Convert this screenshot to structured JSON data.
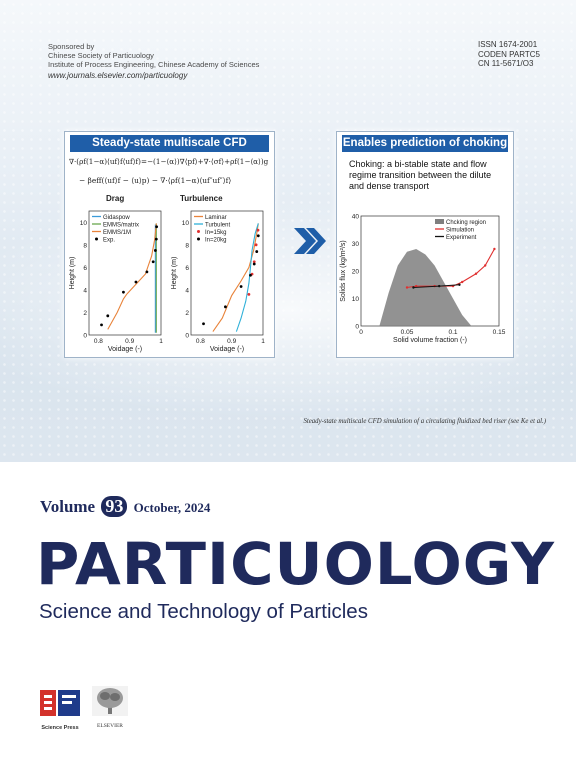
{
  "header": {
    "sponsor_lines": [
      "Sponsored by",
      "Chinese Society of Particuology",
      "Institute of Process Engineering, Chinese Academy of Sciences"
    ],
    "url": "www.journals.elsevier.com/particuology",
    "codes": [
      "ISSN 1674-2001",
      "CODEN PARTC5",
      "CN 11-5671/O3"
    ]
  },
  "left_panel": {
    "title": "Steady-state multiscale CFD modeling",
    "equation_line1": "∇·(ρf(1−α)⟨uf⟩f⟨uf⟩f)=−(1−⟨α⟩)∇⟨pf⟩+∇·⟨σf⟩+ρf(1−⟨α⟩)g",
    "equation_line2": "− βeff(⟨uf⟩f − ⟨u⟩p)  −  ∇·⟨ρf(1−α)⟨uf″uf″⟩f⟩",
    "drag_label": "Drag",
    "turbulence_label": "Turbulence"
  },
  "right_panel": {
    "title": "Enables prediction of choking",
    "text": "Choking: a bi-stable state and flow regime transition between the dilute and dense transport"
  },
  "chart_data": [
    {
      "type": "line",
      "xlabel": "Voidage (-)",
      "ylabel": "Height (m)",
      "xlim": [
        0.77,
        1.0
      ],
      "ylim": [
        0,
        11
      ],
      "xticks": [
        "0.8",
        "0.9",
        "1"
      ],
      "yticks": [
        "0",
        "2",
        "4",
        "6",
        "8",
        "10"
      ],
      "legend": "top-left",
      "series": [
        {
          "name": "Gidaspow",
          "color": "#3a9bd9",
          "x": [
            0.982,
            0.982,
            0.982,
            0.982,
            0.982,
            0.982,
            0.982,
            0.982,
            0.982,
            0.982
          ],
          "y": [
            0.2,
            1,
            2,
            3,
            4,
            5,
            6,
            7,
            8,
            9.8
          ]
        },
        {
          "name": "EMMS/matrix",
          "color": "#6aa84f",
          "x": [
            0.985,
            0.985,
            0.985,
            0.985,
            0.985,
            0.985,
            0.985,
            0.985
          ],
          "y": [
            0.2,
            1.5,
            3,
            4.5,
            6,
            7.5,
            9,
            9.9
          ]
        },
        {
          "name": "EMMS/1M",
          "color": "#e8833a",
          "x": [
            0.83,
            0.86,
            0.88,
            0.89,
            0.91,
            0.95,
            0.97,
            0.98,
            0.985
          ],
          "y": [
            0.5,
            2,
            3.2,
            3.6,
            4.2,
            5.4,
            7,
            8.5,
            9.9
          ]
        },
        {
          "name": "Exp.",
          "color": "#000000",
          "marker": "point",
          "x": [
            0.81,
            0.83,
            0.88,
            0.92,
            0.955,
            0.975,
            0.982,
            0.985,
            0.986
          ],
          "y": [
            0.9,
            1.7,
            3.8,
            4.7,
            5.6,
            6.5,
            7.5,
            8.5,
            9.6
          ]
        }
      ]
    },
    {
      "type": "line",
      "xlabel": "Voidage (-)",
      "ylabel": "Height (m)",
      "xlim": [
        0.77,
        1.0
      ],
      "ylim": [
        0,
        11
      ],
      "xticks": [
        "0.8",
        "0.9",
        "1"
      ],
      "yticks": [
        "0",
        "2",
        "4",
        "6",
        "8",
        "10"
      ],
      "legend": "top-left",
      "series": [
        {
          "name": "Laminar",
          "color": "#e8833a",
          "x": [
            0.84,
            0.87,
            0.9,
            0.93,
            0.955,
            0.97,
            0.98,
            0.985
          ],
          "y": [
            0.3,
            1.5,
            3.5,
            4.8,
            6,
            7.5,
            9,
            9.9
          ]
        },
        {
          "name": "Turbulent",
          "color": "#2fb0d8",
          "x": [
            0.915,
            0.93,
            0.945,
            0.955,
            0.96,
            0.965,
            0.975,
            0.985
          ],
          "y": [
            0.3,
            1.5,
            3,
            4.6,
            6,
            7.5,
            9,
            9.9
          ]
        },
        {
          "name": "In=15kg",
          "color": "#e03030",
          "marker": "point",
          "x": [
            0.955,
            0.965,
            0.972,
            0.978,
            0.984
          ],
          "y": [
            3.6,
            5.4,
            6.5,
            8,
            9.3
          ]
        },
        {
          "name": "In=20kg",
          "color": "#000000",
          "marker": "point",
          "x": [
            0.81,
            0.88,
            0.93,
            0.96,
            0.972,
            0.98,
            0.985
          ],
          "y": [
            1.0,
            2.5,
            4.3,
            5.3,
            6.3,
            7.4,
            8.8
          ]
        }
      ]
    },
    {
      "type": "line",
      "xlabel": "Solid volume fraction (-)",
      "ylabel": "Solids flux (kg/m²/s)",
      "xlim": [
        0,
        0.15
      ],
      "ylim": [
        0,
        40
      ],
      "xticks": [
        "0",
        "0.05",
        "0.1",
        "0.15"
      ],
      "yticks": [
        "0",
        "10",
        "20",
        "30",
        "40"
      ],
      "legend": "top-right",
      "series": [
        {
          "name": "Chcking region",
          "color": "#7f7f7f",
          "kind": "area",
          "x": [
            0.02,
            0.03,
            0.04,
            0.05,
            0.06,
            0.07,
            0.08,
            0.09,
            0.1,
            0.11,
            0.12
          ],
          "y": [
            0,
            12,
            22,
            27,
            28,
            26,
            22,
            16,
            10,
            4,
            0
          ]
        },
        {
          "name": "Simulation",
          "color": "#e03030",
          "x": [
            0.05,
            0.06,
            0.08,
            0.1,
            0.11,
            0.125,
            0.135,
            0.145
          ],
          "y": [
            14,
            14.5,
            14.5,
            14.5,
            16,
            19,
            22,
            28
          ]
        },
        {
          "name": "Experiment",
          "color": "#111111",
          "x": [
            0.057,
            0.085,
            0.107
          ],
          "y": [
            14,
            14.5,
            15
          ]
        }
      ]
    }
  ],
  "caption": "Steady-state multiscale CFD simulation of a circulating fluidized bed riser (see Ke et al.)",
  "volume": {
    "prefix": "Volume",
    "number": "93",
    "date": "October, 2024"
  },
  "journal": {
    "name": "PARTICUOLOGY",
    "subtitle": "Science and Technology of Particles"
  },
  "publishers": {
    "left": "Science Press",
    "right": "ELSEVIER"
  }
}
